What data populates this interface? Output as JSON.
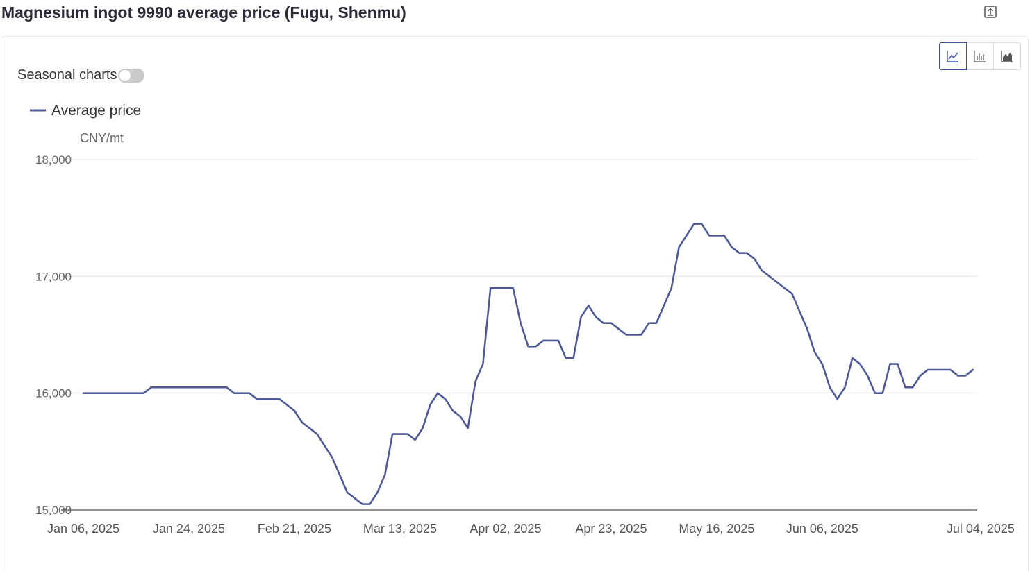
{
  "header": {
    "title": "Magnesium ingot 9990 average price (Fugu, Shenmu)"
  },
  "controls": {
    "seasonal_label": "Seasonal charts",
    "seasonal_on": false,
    "chart_types": [
      "line",
      "bar",
      "area"
    ],
    "active_type": "line"
  },
  "chart_data": {
    "type": "line",
    "title": "Magnesium ingot 9990 average price (Fugu, Shenmu)",
    "ylabel": "CNY/mt",
    "ylim": [
      15000,
      18000
    ],
    "yticks": [
      15000,
      16000,
      17000,
      18000
    ],
    "ytick_labels": [
      "15,000",
      "16,000",
      "17,000",
      "18,000"
    ],
    "xtick_labels": [
      "Jan 06, 2025",
      "Jan 24, 2025",
      "Feb 21, 2025",
      "Mar 13, 2025",
      "Apr 02, 2025",
      "Apr 23, 2025",
      "May 16, 2025",
      "Jun 06, 2025",
      "Jul 04, 2025"
    ],
    "xtick_index": [
      0,
      14,
      28,
      42,
      56,
      70,
      84,
      98,
      119
    ],
    "legend_position": "top-left",
    "grid": true,
    "color": "#4e5a96",
    "series": [
      {
        "name": "Average price",
        "values": [
          16000,
          16000,
          16000,
          16000,
          16000,
          16000,
          16000,
          16000,
          16000,
          16050,
          16050,
          16050,
          16050,
          16050,
          16050,
          16050,
          16050,
          16050,
          16050,
          16050,
          16000,
          16000,
          16000,
          15950,
          15950,
          15950,
          15950,
          15900,
          15850,
          15750,
          15700,
          15650,
          15550,
          15450,
          15300,
          15150,
          15100,
          15050,
          15050,
          15150,
          15300,
          15650,
          15650,
          15650,
          15600,
          15700,
          15900,
          16000,
          15950,
          15850,
          15800,
          15700,
          16100,
          16250,
          16900,
          16900,
          16900,
          16900,
          16600,
          16400,
          16400,
          16450,
          16450,
          16450,
          16300,
          16300,
          16650,
          16750,
          16650,
          16600,
          16600,
          16550,
          16500,
          16500,
          16500,
          16600,
          16600,
          16750,
          16900,
          17250,
          17350,
          17450,
          17450,
          17350,
          17350,
          17350,
          17250,
          17200,
          17200,
          17150,
          17050,
          17000,
          16950,
          16900,
          16850,
          16700,
          16550,
          16350,
          16250,
          16050,
          15950,
          16050,
          16300,
          16250,
          16150,
          16000,
          16000,
          16250,
          16250,
          16050,
          16050,
          16150,
          16200,
          16200,
          16200,
          16200,
          16150,
          16150,
          16200
        ]
      }
    ]
  }
}
